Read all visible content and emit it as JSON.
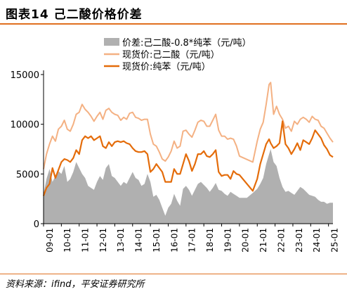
{
  "figure": {
    "title": "图表14   己二酸价格价差",
    "source": "资料来源：ifind，平安证券研究所"
  },
  "chart_data": {
    "type": "line",
    "ylim": [
      0,
      15000
    ],
    "yticks": [
      "0",
      "5000",
      "10000",
      "15000"
    ],
    "xticks": [
      "09-01",
      "10-01",
      "11-01",
      "12-01",
      "13-01",
      "14-01",
      "15-01",
      "16-01",
      "17-01",
      "18-01",
      "19-01",
      "20-01",
      "21-01",
      "22-01",
      "23-01",
      "24-01",
      "25-01"
    ],
    "x_start": "2009-01",
    "x_end": "2025-04",
    "legend_position": "top-right",
    "grid": false,
    "series": [
      {
        "name": "价差:己二酸-0.8*纯苯（元/吨）",
        "kind": "area",
        "color": "#b0b0b0",
        "points": [
          [
            "2009-01",
            3000
          ],
          [
            "2009-03",
            4500
          ],
          [
            "2009-05",
            5500
          ],
          [
            "2009-07",
            4200
          ],
          [
            "2009-09",
            4800
          ],
          [
            "2009-11",
            5300
          ],
          [
            "2010-01",
            5000
          ],
          [
            "2010-03",
            5800
          ],
          [
            "2010-05",
            4200
          ],
          [
            "2010-07",
            4500
          ],
          [
            "2010-09",
            5200
          ],
          [
            "2010-11",
            6200
          ],
          [
            "2011-01",
            5600
          ],
          [
            "2011-03",
            5000
          ],
          [
            "2011-05",
            4600
          ],
          [
            "2011-07",
            3800
          ],
          [
            "2011-09",
            3600
          ],
          [
            "2011-11",
            3400
          ],
          [
            "2012-01",
            4200
          ],
          [
            "2012-03",
            4800
          ],
          [
            "2012-05",
            4400
          ],
          [
            "2012-07",
            5600
          ],
          [
            "2012-09",
            6000
          ],
          [
            "2012-11",
            4800
          ],
          [
            "2013-01",
            4600
          ],
          [
            "2013-03",
            4200
          ],
          [
            "2013-05",
            3800
          ],
          [
            "2013-07",
            4200
          ],
          [
            "2013-09",
            4000
          ],
          [
            "2013-11",
            4600
          ],
          [
            "2014-01",
            5200
          ],
          [
            "2014-03",
            4600
          ],
          [
            "2014-05",
            4400
          ],
          [
            "2014-07",
            3800
          ],
          [
            "2014-09",
            4000
          ],
          [
            "2014-11",
            5000
          ],
          [
            "2015-01",
            4200
          ],
          [
            "2015-03",
            2700
          ],
          [
            "2015-05",
            2900
          ],
          [
            "2015-07",
            2400
          ],
          [
            "2015-09",
            1600
          ],
          [
            "2015-11",
            800
          ],
          [
            "2016-01",
            1600
          ],
          [
            "2016-03",
            2000
          ],
          [
            "2016-05",
            3000
          ],
          [
            "2016-07",
            2300
          ],
          [
            "2016-09",
            1800
          ],
          [
            "2016-11",
            3500
          ],
          [
            "2017-01",
            3800
          ],
          [
            "2017-03",
            3400
          ],
          [
            "2017-05",
            2800
          ],
          [
            "2017-07",
            3400
          ],
          [
            "2017-09",
            4000
          ],
          [
            "2017-11",
            4200
          ],
          [
            "2018-01",
            3900
          ],
          [
            "2018-03",
            3600
          ],
          [
            "2018-05",
            3200
          ],
          [
            "2018-07",
            3600
          ],
          [
            "2018-09",
            4100
          ],
          [
            "2018-11",
            3400
          ],
          [
            "2019-01",
            3300
          ],
          [
            "2019-03",
            3000
          ],
          [
            "2019-05",
            2800
          ],
          [
            "2019-07",
            3200
          ],
          [
            "2019-09",
            3000
          ],
          [
            "2019-11",
            2800
          ],
          [
            "2020-01",
            2600
          ],
          [
            "2020-06",
            2600
          ],
          [
            "2020-10",
            3100
          ],
          [
            "2021-01",
            3500
          ],
          [
            "2021-03",
            4000
          ],
          [
            "2021-05",
            4600
          ],
          [
            "2021-07",
            6000
          ],
          [
            "2021-09",
            7000
          ],
          [
            "2021-10",
            7500
          ],
          [
            "2021-12",
            6200
          ],
          [
            "2022-02",
            5800
          ],
          [
            "2022-04",
            4600
          ],
          [
            "2022-06",
            3700
          ],
          [
            "2022-08",
            3200
          ],
          [
            "2022-10",
            3300
          ],
          [
            "2022-12",
            3100
          ],
          [
            "2023-02",
            2900
          ],
          [
            "2023-04",
            3300
          ],
          [
            "2023-06",
            3700
          ],
          [
            "2023-08",
            3500
          ],
          [
            "2023-10",
            3200
          ],
          [
            "2023-12",
            2900
          ],
          [
            "2024-02",
            2800
          ],
          [
            "2024-04",
            2700
          ],
          [
            "2024-06",
            2400
          ],
          [
            "2024-08",
            2200
          ],
          [
            "2024-10",
            2200
          ],
          [
            "2024-12",
            2000
          ],
          [
            "2025-02",
            2100
          ],
          [
            "2025-04",
            2100
          ]
        ]
      },
      {
        "name": "现货价:己二酸（元/吨）",
        "kind": "line",
        "color": "#f4b183",
        "points": [
          [
            "2009-01",
            5500
          ],
          [
            "2009-03",
            7000
          ],
          [
            "2009-05",
            8000
          ],
          [
            "2009-07",
            8800
          ],
          [
            "2009-09",
            8300
          ],
          [
            "2009-11",
            9500
          ],
          [
            "2010-01",
            9800
          ],
          [
            "2010-03",
            10400
          ],
          [
            "2010-05",
            9500
          ],
          [
            "2010-07",
            9300
          ],
          [
            "2010-09",
            10000
          ],
          [
            "2010-11",
            11000
          ],
          [
            "2011-01",
            11200
          ],
          [
            "2011-03",
            12000
          ],
          [
            "2011-05",
            11500
          ],
          [
            "2011-07",
            11200
          ],
          [
            "2011-09",
            10800
          ],
          [
            "2011-11",
            10300
          ],
          [
            "2012-01",
            10800
          ],
          [
            "2012-03",
            11200
          ],
          [
            "2012-05",
            10500
          ],
          [
            "2012-07",
            11400
          ],
          [
            "2012-09",
            11600
          ],
          [
            "2012-11",
            11200
          ],
          [
            "2013-01",
            11000
          ],
          [
            "2013-03",
            10900
          ],
          [
            "2013-05",
            10400
          ],
          [
            "2013-07",
            10700
          ],
          [
            "2013-09",
            10500
          ],
          [
            "2013-11",
            11100
          ],
          [
            "2014-01",
            11200
          ],
          [
            "2014-03",
            10700
          ],
          [
            "2014-05",
            10600
          ],
          [
            "2014-07",
            10400
          ],
          [
            "2014-09",
            10500
          ],
          [
            "2014-11",
            10500
          ],
          [
            "2015-01",
            9000
          ],
          [
            "2015-03",
            8000
          ],
          [
            "2015-05",
            7800
          ],
          [
            "2015-07",
            7200
          ],
          [
            "2015-09",
            6500
          ],
          [
            "2015-11",
            6300
          ],
          [
            "2016-01",
            6700
          ],
          [
            "2016-03",
            7300
          ],
          [
            "2016-05",
            8300
          ],
          [
            "2016-07",
            7600
          ],
          [
            "2016-09",
            7800
          ],
          [
            "2016-11",
            9300
          ],
          [
            "2017-01",
            9400
          ],
          [
            "2017-03",
            9000
          ],
          [
            "2017-05",
            8700
          ],
          [
            "2017-07",
            9400
          ],
          [
            "2017-09",
            10200
          ],
          [
            "2017-11",
            10400
          ],
          [
            "2018-01",
            10300
          ],
          [
            "2018-03",
            9800
          ],
          [
            "2018-05",
            9800
          ],
          [
            "2018-07",
            10400
          ],
          [
            "2018-09",
            11000
          ],
          [
            "2018-11",
            9400
          ],
          [
            "2019-01",
            8800
          ],
          [
            "2019-03",
            8800
          ],
          [
            "2019-05",
            8500
          ],
          [
            "2019-07",
            8600
          ],
          [
            "2019-09",
            8500
          ],
          [
            "2019-11",
            7800
          ],
          [
            "2020-01",
            6800
          ],
          [
            "2020-10",
            6200
          ],
          [
            "2021-01",
            8300
          ],
          [
            "2021-03",
            9500
          ],
          [
            "2021-05",
            10200
          ],
          [
            "2021-07",
            12000
          ],
          [
            "2021-09",
            14000
          ],
          [
            "2021-10",
            14200
          ],
          [
            "2021-12",
            11000
          ],
          [
            "2022-02",
            11800
          ],
          [
            "2022-04",
            11000
          ],
          [
            "2022-06",
            10500
          ],
          [
            "2022-08",
            9600
          ],
          [
            "2022-10",
            9800
          ],
          [
            "2022-12",
            9300
          ],
          [
            "2023-02",
            10300
          ],
          [
            "2023-04",
            10000
          ],
          [
            "2023-06",
            10500
          ],
          [
            "2023-08",
            10700
          ],
          [
            "2023-10",
            10500
          ],
          [
            "2023-12",
            10200
          ],
          [
            "2024-02",
            10800
          ],
          [
            "2024-04",
            10500
          ],
          [
            "2024-06",
            10400
          ],
          [
            "2024-08",
            9800
          ],
          [
            "2024-10",
            9600
          ],
          [
            "2024-12",
            9100
          ],
          [
            "2025-02",
            8600
          ],
          [
            "2025-04",
            8200
          ]
        ]
      },
      {
        "name": "现货价:纯苯（元/吨）",
        "kind": "line",
        "color": "#e46c0a",
        "points": [
          [
            "2009-01",
            2800
          ],
          [
            "2009-03",
            3600
          ],
          [
            "2009-05",
            4000
          ],
          [
            "2009-07",
            5600
          ],
          [
            "2009-09",
            4600
          ],
          [
            "2009-11",
            5400
          ],
          [
            "2010-01",
            6200
          ],
          [
            "2010-03",
            6500
          ],
          [
            "2010-05",
            6400
          ],
          [
            "2010-07",
            6200
          ],
          [
            "2010-09",
            6600
          ],
          [
            "2010-11",
            7400
          ],
          [
            "2011-01",
            7000
          ],
          [
            "2011-03",
            8400
          ],
          [
            "2011-05",
            8800
          ],
          [
            "2011-07",
            8600
          ],
          [
            "2011-09",
            8800
          ],
          [
            "2011-11",
            8400
          ],
          [
            "2012-01",
            8600
          ],
          [
            "2012-03",
            8800
          ],
          [
            "2012-05",
            7800
          ],
          [
            "2012-07",
            7600
          ],
          [
            "2012-09",
            8200
          ],
          [
            "2012-11",
            7800
          ],
          [
            "2013-01",
            8200
          ],
          [
            "2013-03",
            8300
          ],
          [
            "2013-05",
            8200
          ],
          [
            "2013-07",
            8300
          ],
          [
            "2013-09",
            8100
          ],
          [
            "2013-11",
            8000
          ],
          [
            "2014-01",
            7600
          ],
          [
            "2014-03",
            7300
          ],
          [
            "2014-05",
            7200
          ],
          [
            "2014-07",
            7200
          ],
          [
            "2014-09",
            7300
          ],
          [
            "2014-11",
            7000
          ],
          [
            "2015-01",
            5200
          ],
          [
            "2015-03",
            5500
          ],
          [
            "2015-05",
            6000
          ],
          [
            "2015-07",
            5600
          ],
          [
            "2015-09",
            5200
          ],
          [
            "2015-11",
            4200
          ],
          [
            "2016-01",
            4200
          ],
          [
            "2016-03",
            4200
          ],
          [
            "2016-05",
            5500
          ],
          [
            "2016-07",
            5000
          ],
          [
            "2016-09",
            5000
          ],
          [
            "2016-11",
            6000
          ],
          [
            "2017-01",
            7000
          ],
          [
            "2017-03",
            6300
          ],
          [
            "2017-05",
            5300
          ],
          [
            "2017-07",
            6000
          ],
          [
            "2017-09",
            7000
          ],
          [
            "2017-11",
            7000
          ],
          [
            "2018-01",
            7300
          ],
          [
            "2018-03",
            6800
          ],
          [
            "2018-05",
            6700
          ],
          [
            "2018-07",
            7000
          ],
          [
            "2018-09",
            7400
          ],
          [
            "2018-11",
            5200
          ],
          [
            "2019-01",
            4800
          ],
          [
            "2019-03",
            4900
          ],
          [
            "2019-05",
            4900
          ],
          [
            "2019-07",
            4500
          ],
          [
            "2019-09",
            5300
          ],
          [
            "2019-11",
            5000
          ],
          [
            "2020-01",
            4900
          ],
          [
            "2020-10",
            3300
          ],
          [
            "2021-01",
            4500
          ],
          [
            "2021-03",
            6000
          ],
          [
            "2021-05",
            7000
          ],
          [
            "2021-07",
            8000
          ],
          [
            "2021-09",
            8500
          ],
          [
            "2021-10",
            8100
          ],
          [
            "2021-12",
            7600
          ],
          [
            "2022-02",
            7800
          ],
          [
            "2022-04",
            8100
          ],
          [
            "2022-06",
            10300
          ],
          [
            "2022-08",
            8000
          ],
          [
            "2022-10",
            7600
          ],
          [
            "2022-12",
            7000
          ],
          [
            "2023-02",
            7500
          ],
          [
            "2023-04",
            8100
          ],
          [
            "2023-06",
            7400
          ],
          [
            "2023-08",
            8400
          ],
          [
            "2023-10",
            8200
          ],
          [
            "2023-12",
            8000
          ],
          [
            "2024-02",
            8600
          ],
          [
            "2024-04",
            9400
          ],
          [
            "2024-06",
            9000
          ],
          [
            "2024-08",
            8600
          ],
          [
            "2024-10",
            7900
          ],
          [
            "2024-12",
            7500
          ],
          [
            "2025-02",
            6900
          ],
          [
            "2025-04",
            6700
          ]
        ]
      }
    ]
  }
}
